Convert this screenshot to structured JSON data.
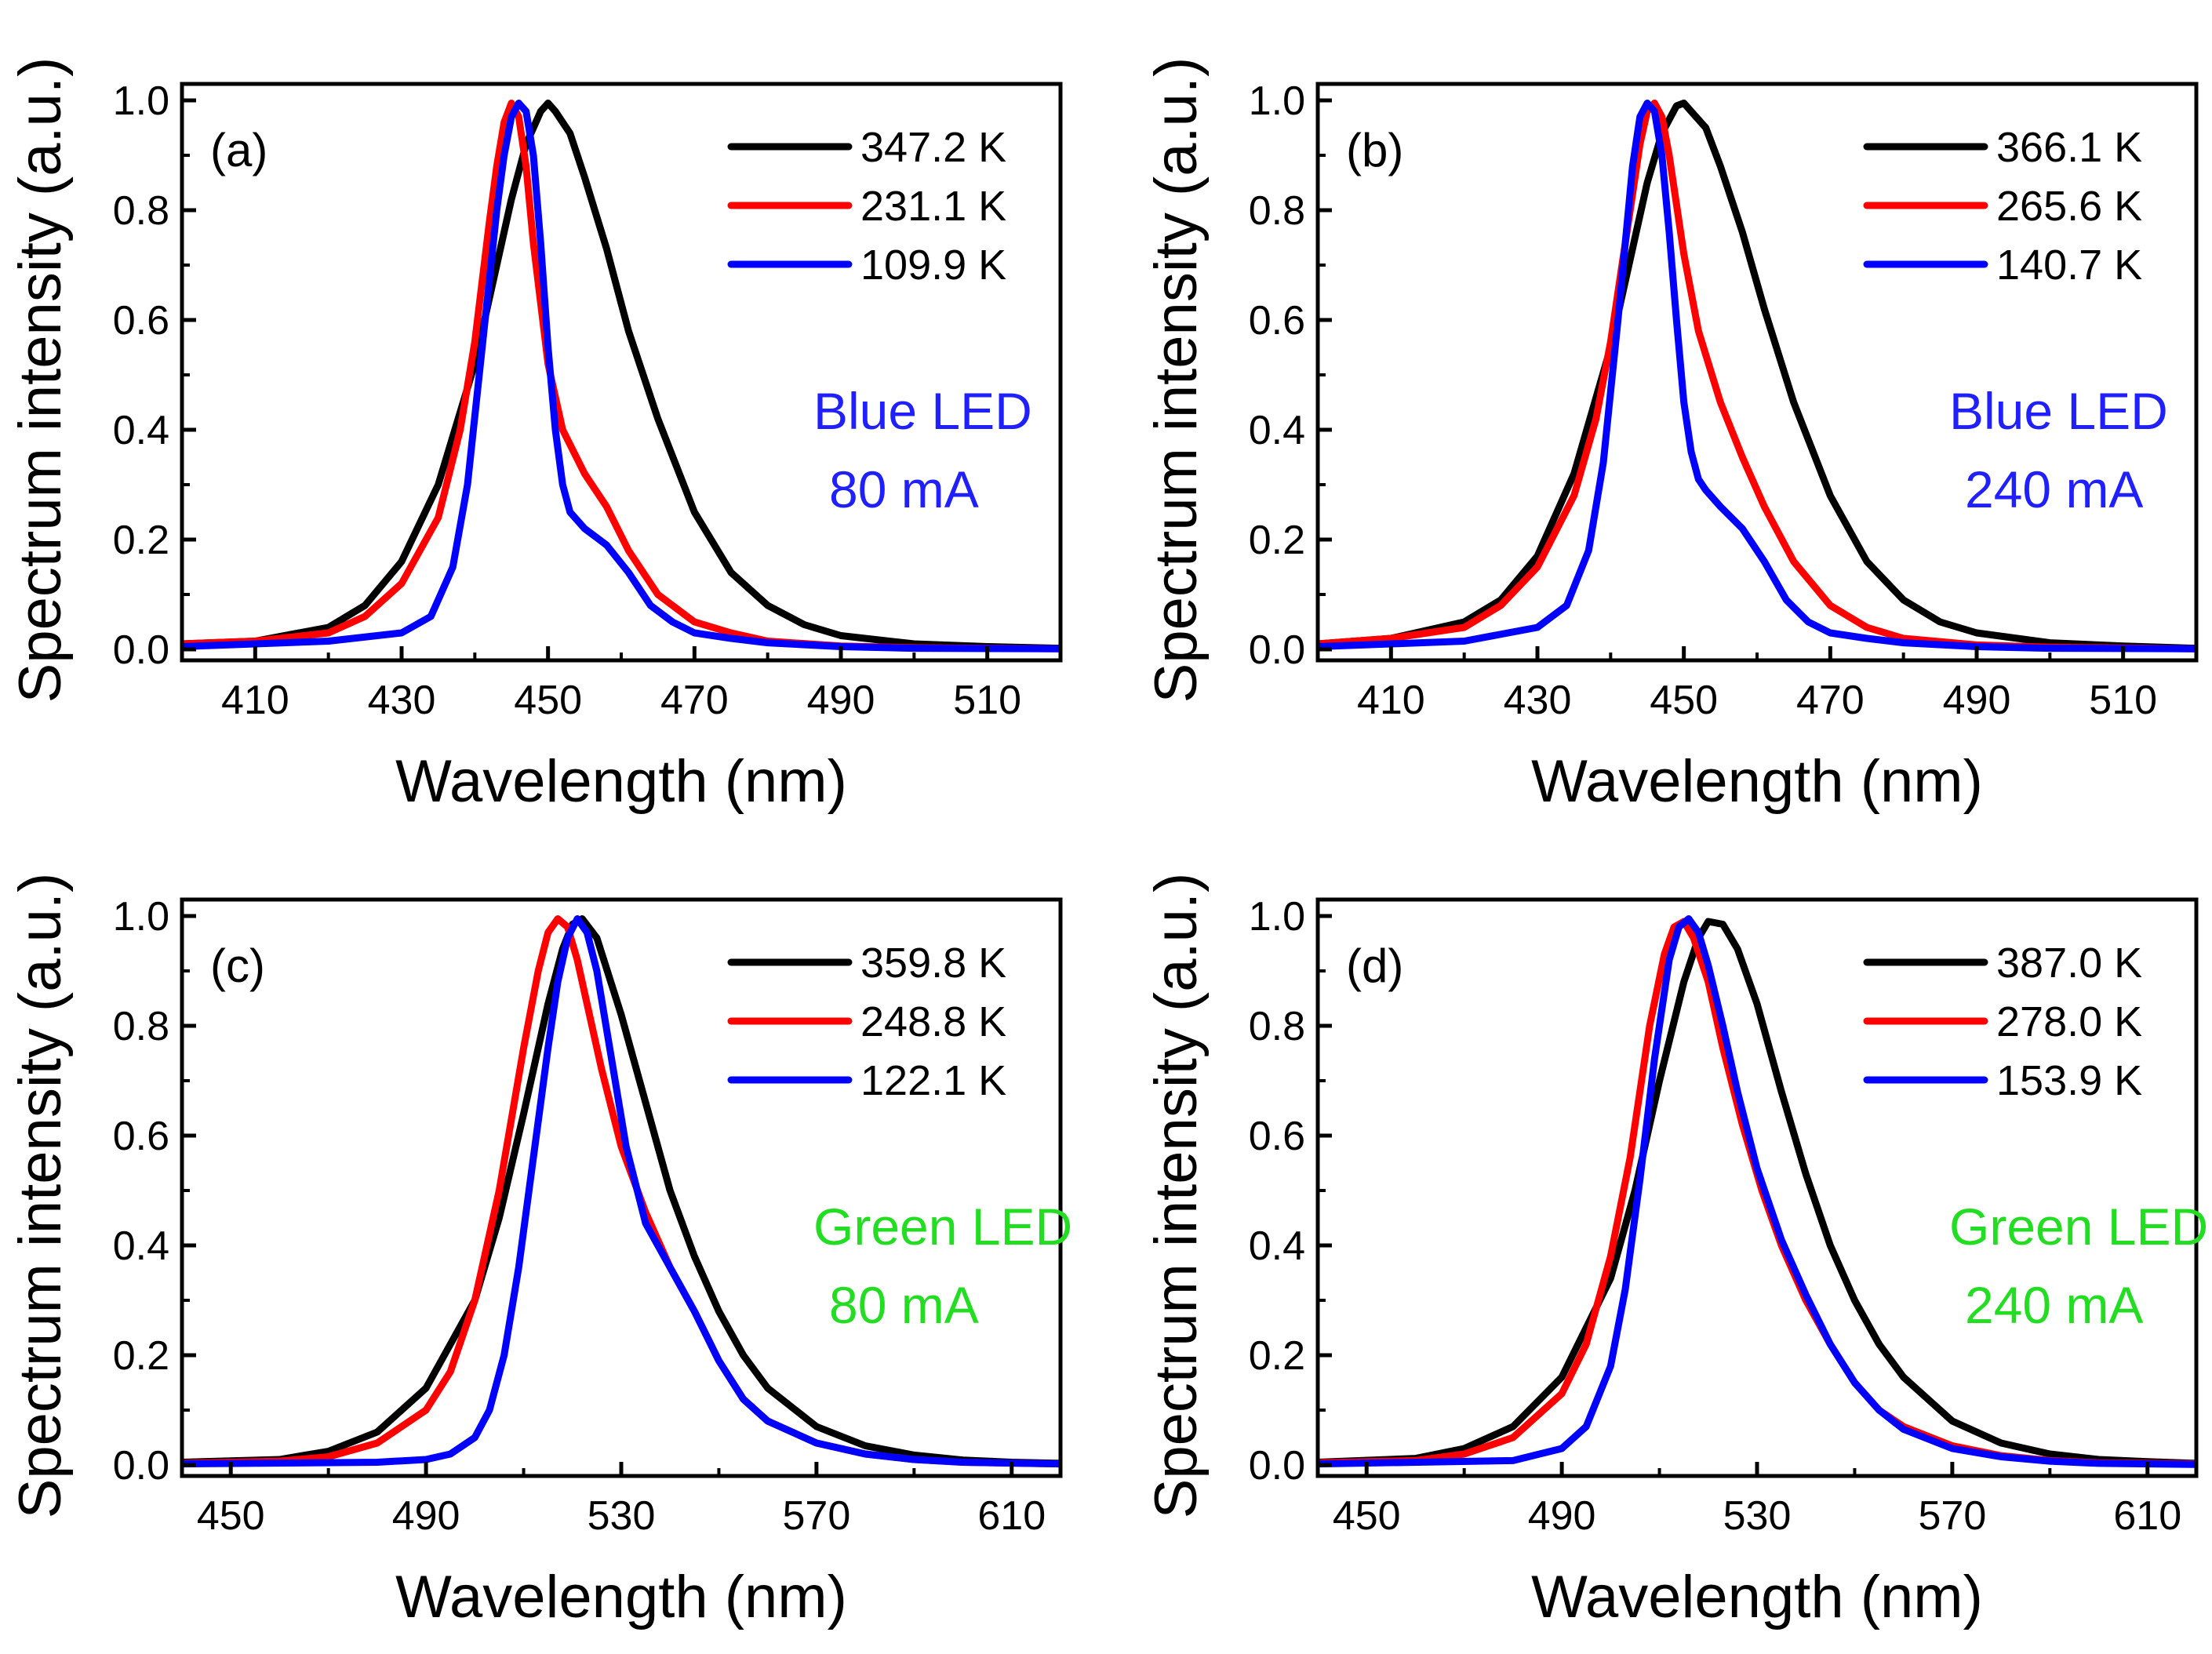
{
  "chart_data": [
    {
      "type": "line",
      "panel": "(a)",
      "xlabel": "Wavelength (nm)",
      "ylabel": "Spectrum intensity (a.u.)",
      "xlim": [
        400,
        520
      ],
      "ylim": [
        -0.02,
        1.03
      ],
      "xticks": [
        410,
        430,
        450,
        470,
        490,
        510
      ],
      "yticks": [
        "0.0",
        "0.2",
        "0.4",
        "0.6",
        "0.8",
        "1.0"
      ],
      "annotation": [
        "Blue LED",
        "80 mA"
      ],
      "annotation_color": "#2020ff",
      "series": [
        {
          "name": "347.2 K",
          "color": "#000000",
          "x": [
            400,
            410,
            420,
            425,
            430,
            435,
            440,
            443,
            445,
            447,
            449,
            450,
            451,
            453,
            455,
            458,
            461,
            465,
            470,
            475,
            480,
            485,
            490,
            500,
            510,
            520
          ],
          "y": [
            0.01,
            0.015,
            0.04,
            0.08,
            0.16,
            0.3,
            0.52,
            0.7,
            0.82,
            0.92,
            0.98,
            0.995,
            0.98,
            0.94,
            0.86,
            0.73,
            0.58,
            0.42,
            0.25,
            0.14,
            0.08,
            0.045,
            0.025,
            0.01,
            0.005,
            0.002
          ]
        },
        {
          "name": "231.1 K",
          "color": "#ff0000",
          "x": [
            400,
            410,
            420,
            425,
            430,
            435,
            438,
            440,
            442,
            443,
            444,
            445,
            446,
            447,
            448,
            450,
            452,
            455,
            458,
            461,
            465,
            470,
            475,
            480,
            490,
            500,
            520
          ],
          "y": [
            0.01,
            0.015,
            0.03,
            0.06,
            0.12,
            0.24,
            0.4,
            0.56,
            0.78,
            0.88,
            0.96,
            0.995,
            0.97,
            0.88,
            0.74,
            0.52,
            0.4,
            0.32,
            0.26,
            0.18,
            0.1,
            0.05,
            0.03,
            0.015,
            0.006,
            0.003,
            0.001
          ]
        },
        {
          "name": "109.9 K",
          "color": "#0000ff",
          "x": [
            400,
            410,
            420,
            430,
            434,
            437,
            439,
            441,
            443,
            444,
            445,
            446,
            447,
            448,
            449,
            450,
            451,
            452,
            453,
            455,
            458,
            461,
            464,
            467,
            470,
            475,
            480,
            490,
            500,
            520
          ],
          "y": [
            0.005,
            0.01,
            0.015,
            0.03,
            0.06,
            0.15,
            0.3,
            0.55,
            0.8,
            0.9,
            0.97,
            0.995,
            0.98,
            0.9,
            0.74,
            0.55,
            0.4,
            0.3,
            0.25,
            0.22,
            0.19,
            0.14,
            0.08,
            0.05,
            0.03,
            0.02,
            0.012,
            0.005,
            0.002,
            0.001
          ]
        }
      ]
    },
    {
      "type": "line",
      "panel": "(b)",
      "xlabel": "Wavelength (nm)",
      "ylabel": "Spectrum intensity (a.u.)",
      "xlim": [
        400,
        520
      ],
      "ylim": [
        -0.02,
        1.03
      ],
      "xticks": [
        410,
        430,
        450,
        470,
        490,
        510
      ],
      "yticks": [
        "0.0",
        "0.2",
        "0.4",
        "0.6",
        "0.8",
        "1.0"
      ],
      "annotation": [
        "Blue LED",
        "240 mA"
      ],
      "annotation_color": "#2020ff",
      "series": [
        {
          "name": "366.1 K",
          "color": "#000000",
          "x": [
            400,
            410,
            420,
            425,
            430,
            435,
            440,
            443,
            445,
            447,
            449,
            450,
            451,
            453,
            455,
            458,
            461,
            465,
            470,
            475,
            480,
            485,
            490,
            500,
            510,
            520
          ],
          "y": [
            0.01,
            0.02,
            0.05,
            0.09,
            0.17,
            0.32,
            0.55,
            0.73,
            0.85,
            0.94,
            0.99,
            0.995,
            0.98,
            0.95,
            0.88,
            0.76,
            0.62,
            0.45,
            0.28,
            0.16,
            0.09,
            0.05,
            0.03,
            0.012,
            0.006,
            0.002
          ]
        },
        {
          "name": "265.6 K",
          "color": "#ff0000",
          "x": [
            400,
            410,
            420,
            425,
            430,
            435,
            438,
            440,
            442,
            444,
            445,
            446,
            447,
            448,
            450,
            452,
            455,
            458,
            461,
            465,
            470,
            475,
            480,
            490,
            500,
            520
          ],
          "y": [
            0.01,
            0.02,
            0.04,
            0.08,
            0.15,
            0.28,
            0.42,
            0.56,
            0.74,
            0.92,
            0.98,
            0.995,
            0.97,
            0.9,
            0.72,
            0.58,
            0.45,
            0.35,
            0.26,
            0.16,
            0.08,
            0.04,
            0.02,
            0.008,
            0.004,
            0.001
          ]
        },
        {
          "name": "140.7 K",
          "color": "#0000ff",
          "x": [
            400,
            410,
            420,
            430,
            434,
            437,
            439,
            441,
            443,
            444,
            445,
            446,
            447,
            448,
            449,
            450,
            451,
            452,
            453,
            455,
            458,
            461,
            464,
            467,
            470,
            475,
            480,
            490,
            500,
            520
          ],
          "y": [
            0.005,
            0.01,
            0.015,
            0.04,
            0.08,
            0.18,
            0.34,
            0.6,
            0.88,
            0.97,
            0.995,
            0.98,
            0.9,
            0.76,
            0.6,
            0.45,
            0.36,
            0.31,
            0.29,
            0.26,
            0.22,
            0.16,
            0.09,
            0.05,
            0.03,
            0.02,
            0.012,
            0.005,
            0.002,
            0.001
          ]
        }
      ]
    },
    {
      "type": "line",
      "panel": "(c)",
      "xlabel": "Wavelength (nm)",
      "ylabel": "Spectrum intensity (a.u.)",
      "xlim": [
        440,
        620
      ],
      "ylim": [
        -0.02,
        1.03
      ],
      "xticks": [
        450,
        490,
        530,
        570,
        610
      ],
      "yticks": [
        "0.0",
        "0.2",
        "0.4",
        "0.6",
        "0.8",
        "1.0"
      ],
      "annotation": [
        "Green LED",
        "80 mA"
      ],
      "annotation_color": "#22dd22",
      "series": [
        {
          "name": "359.8 K",
          "color": "#000000",
          "x": [
            440,
            460,
            470,
            480,
            490,
            500,
            505,
            510,
            515,
            518,
            520,
            522,
            525,
            530,
            535,
            540,
            545,
            550,
            555,
            560,
            570,
            580,
            590,
            600,
            610,
            620
          ],
          "y": [
            0.005,
            0.01,
            0.025,
            0.06,
            0.14,
            0.3,
            0.45,
            0.64,
            0.84,
            0.94,
            0.985,
            0.995,
            0.96,
            0.82,
            0.66,
            0.5,
            0.38,
            0.28,
            0.2,
            0.14,
            0.07,
            0.035,
            0.018,
            0.009,
            0.005,
            0.003
          ]
        },
        {
          "name": "248.8 K",
          "color": "#ff0000",
          "x": [
            440,
            460,
            470,
            480,
            490,
            495,
            500,
            505,
            510,
            513,
            515,
            517,
            519,
            521,
            523,
            526,
            530,
            535,
            540,
            545,
            550,
            555,
            560,
            570,
            580,
            590,
            600,
            620
          ],
          "y": [
            0.003,
            0.007,
            0.015,
            0.04,
            0.1,
            0.17,
            0.3,
            0.5,
            0.76,
            0.9,
            0.97,
            0.995,
            0.98,
            0.92,
            0.84,
            0.72,
            0.58,
            0.46,
            0.36,
            0.28,
            0.19,
            0.12,
            0.08,
            0.04,
            0.02,
            0.01,
            0.005,
            0.002
          ]
        },
        {
          "name": "122.1 K",
          "color": "#0000ff",
          "x": [
            440,
            480,
            490,
            495,
            500,
            503,
            506,
            509,
            512,
            515,
            517,
            519,
            521,
            523,
            525,
            528,
            531,
            535,
            540,
            545,
            550,
            555,
            560,
            570,
            580,
            590,
            600,
            620
          ],
          "y": [
            0.002,
            0.005,
            0.01,
            0.02,
            0.05,
            0.1,
            0.2,
            0.36,
            0.56,
            0.76,
            0.88,
            0.96,
            0.995,
            0.97,
            0.9,
            0.74,
            0.58,
            0.44,
            0.36,
            0.28,
            0.19,
            0.12,
            0.08,
            0.04,
            0.02,
            0.01,
            0.005,
            0.002
          ]
        }
      ]
    },
    {
      "type": "line",
      "panel": "(d)",
      "xlabel": "Wavelength (nm)",
      "ylabel": "Spectrum intensity (a.u.)",
      "xlim": [
        440,
        620
      ],
      "ylim": [
        -0.02,
        1.03
      ],
      "xticks": [
        450,
        490,
        530,
        570,
        610
      ],
      "yticks": [
        "0.0",
        "0.2",
        "0.4",
        "0.6",
        "0.8",
        "1.0"
      ],
      "annotation": [
        "Green LED",
        "240 mA"
      ],
      "annotation_color": "#22dd22",
      "series": [
        {
          "name": "387.0 K",
          "color": "#000000",
          "x": [
            440,
            460,
            470,
            480,
            490,
            500,
            505,
            510,
            515,
            518,
            520,
            523,
            526,
            530,
            535,
            540,
            545,
            550,
            555,
            560,
            570,
            580,
            590,
            600,
            610,
            620
          ],
          "y": [
            0.005,
            0.012,
            0.03,
            0.07,
            0.16,
            0.34,
            0.5,
            0.7,
            0.88,
            0.96,
            0.99,
            0.985,
            0.94,
            0.84,
            0.68,
            0.53,
            0.4,
            0.3,
            0.22,
            0.16,
            0.08,
            0.04,
            0.02,
            0.01,
            0.006,
            0.003
          ]
        },
        {
          "name": "278.0 K",
          "color": "#ff0000",
          "x": [
            440,
            460,
            470,
            480,
            490,
            495,
            500,
            504,
            508,
            511,
            513,
            515,
            517,
            520,
            523,
            527,
            531,
            535,
            540,
            545,
            550,
            555,
            560,
            570,
            580,
            590,
            600,
            620
          ],
          "y": [
            0.004,
            0.008,
            0.02,
            0.05,
            0.13,
            0.22,
            0.38,
            0.56,
            0.8,
            0.93,
            0.98,
            0.99,
            0.96,
            0.88,
            0.76,
            0.62,
            0.5,
            0.4,
            0.3,
            0.22,
            0.15,
            0.1,
            0.07,
            0.035,
            0.017,
            0.008,
            0.004,
            0.002
          ]
        },
        {
          "name": "153.9 K",
          "color": "#0000ff",
          "x": [
            440,
            480,
            490,
            495,
            500,
            503,
            506,
            509,
            512,
            514,
            516,
            518,
            520,
            523,
            526,
            530,
            535,
            540,
            545,
            550,
            555,
            560,
            570,
            580,
            590,
            600,
            620
          ],
          "y": [
            0.002,
            0.008,
            0.03,
            0.07,
            0.18,
            0.32,
            0.52,
            0.74,
            0.92,
            0.98,
            0.995,
            0.97,
            0.91,
            0.8,
            0.68,
            0.54,
            0.41,
            0.31,
            0.22,
            0.15,
            0.1,
            0.065,
            0.03,
            0.015,
            0.007,
            0.003,
            0.001
          ]
        }
      ]
    }
  ]
}
